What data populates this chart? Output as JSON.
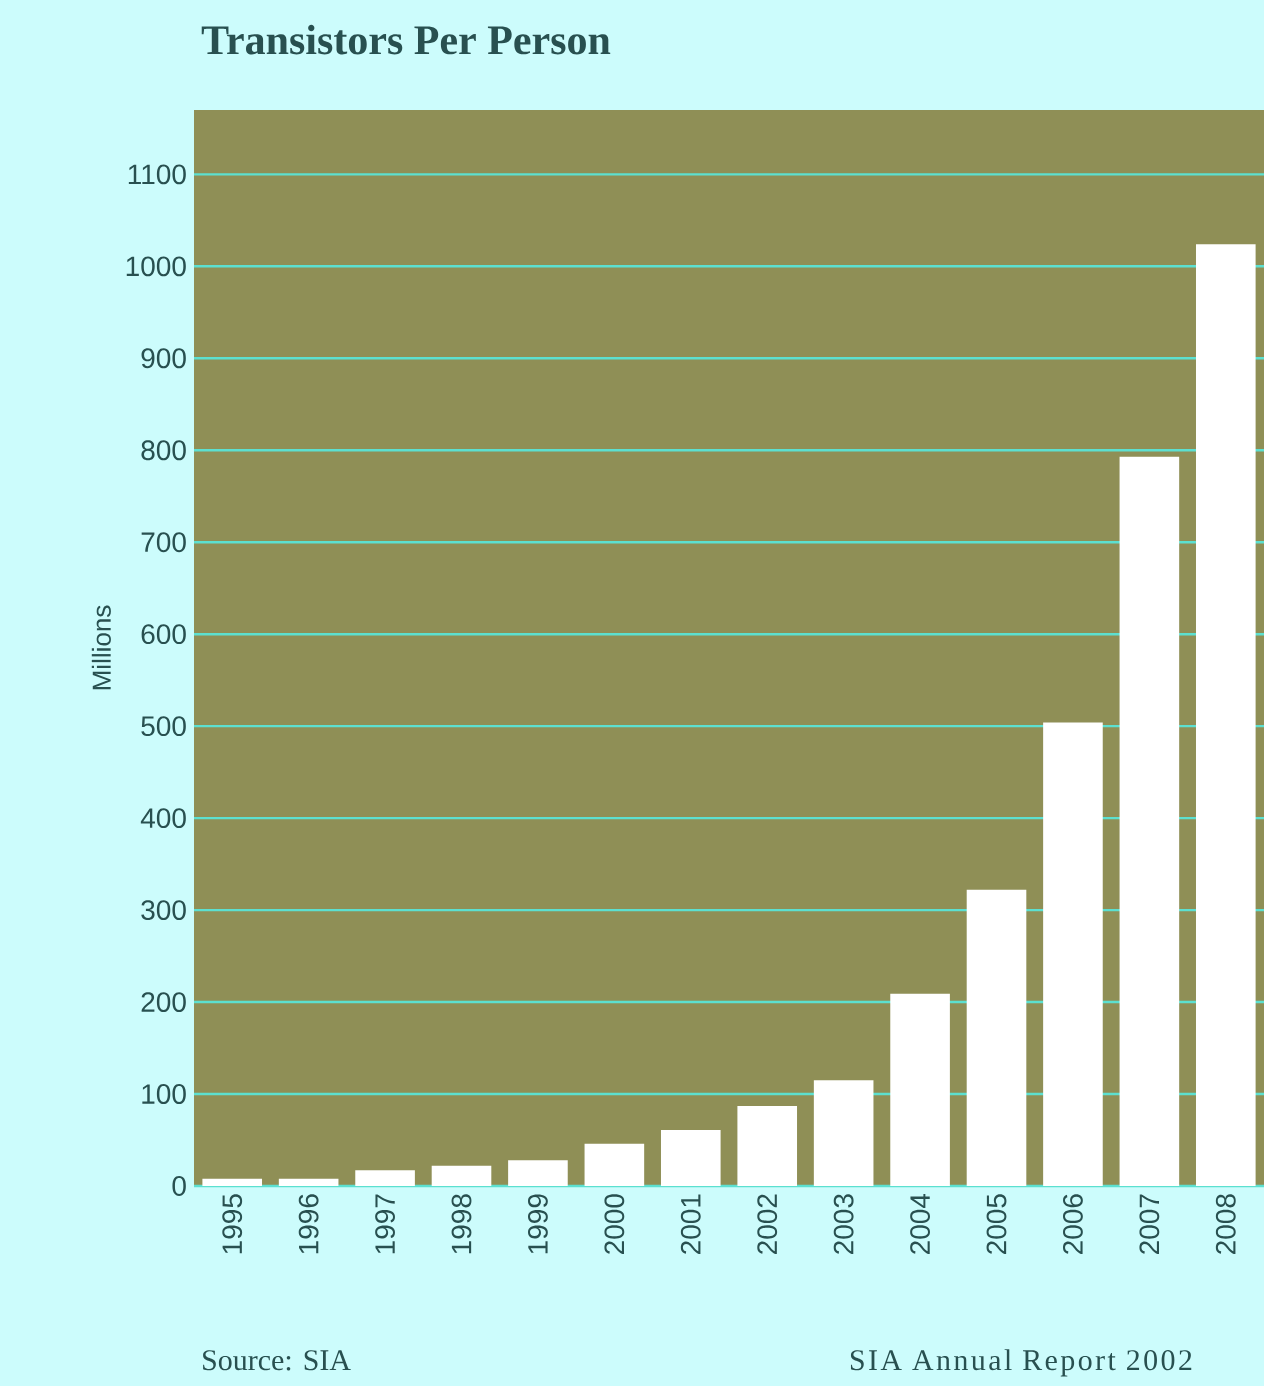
{
  "chart_data": {
    "type": "bar",
    "title": "Transistors Per Person",
    "ylabel": "Millions",
    "categories": [
      "1995",
      "1996",
      "1997",
      "1998",
      "1999",
      "2000",
      "2001",
      "2002",
      "2003",
      "2004",
      "2005",
      "2006",
      "2007",
      "2008"
    ],
    "values": [
      8,
      8,
      17,
      22,
      28,
      46,
      61,
      87,
      115,
      209,
      322,
      504,
      793,
      1024
    ],
    "color": "#ffffff",
    "ylim": [
      0,
      1170
    ],
    "yticks": [
      0,
      100,
      200,
      300,
      400,
      500,
      600,
      700,
      800,
      900,
      1000,
      1100
    ],
    "grid": "y",
    "annotations": [
      "Source: SIA",
      "SIA Annual Report 2002"
    ]
  }
}
